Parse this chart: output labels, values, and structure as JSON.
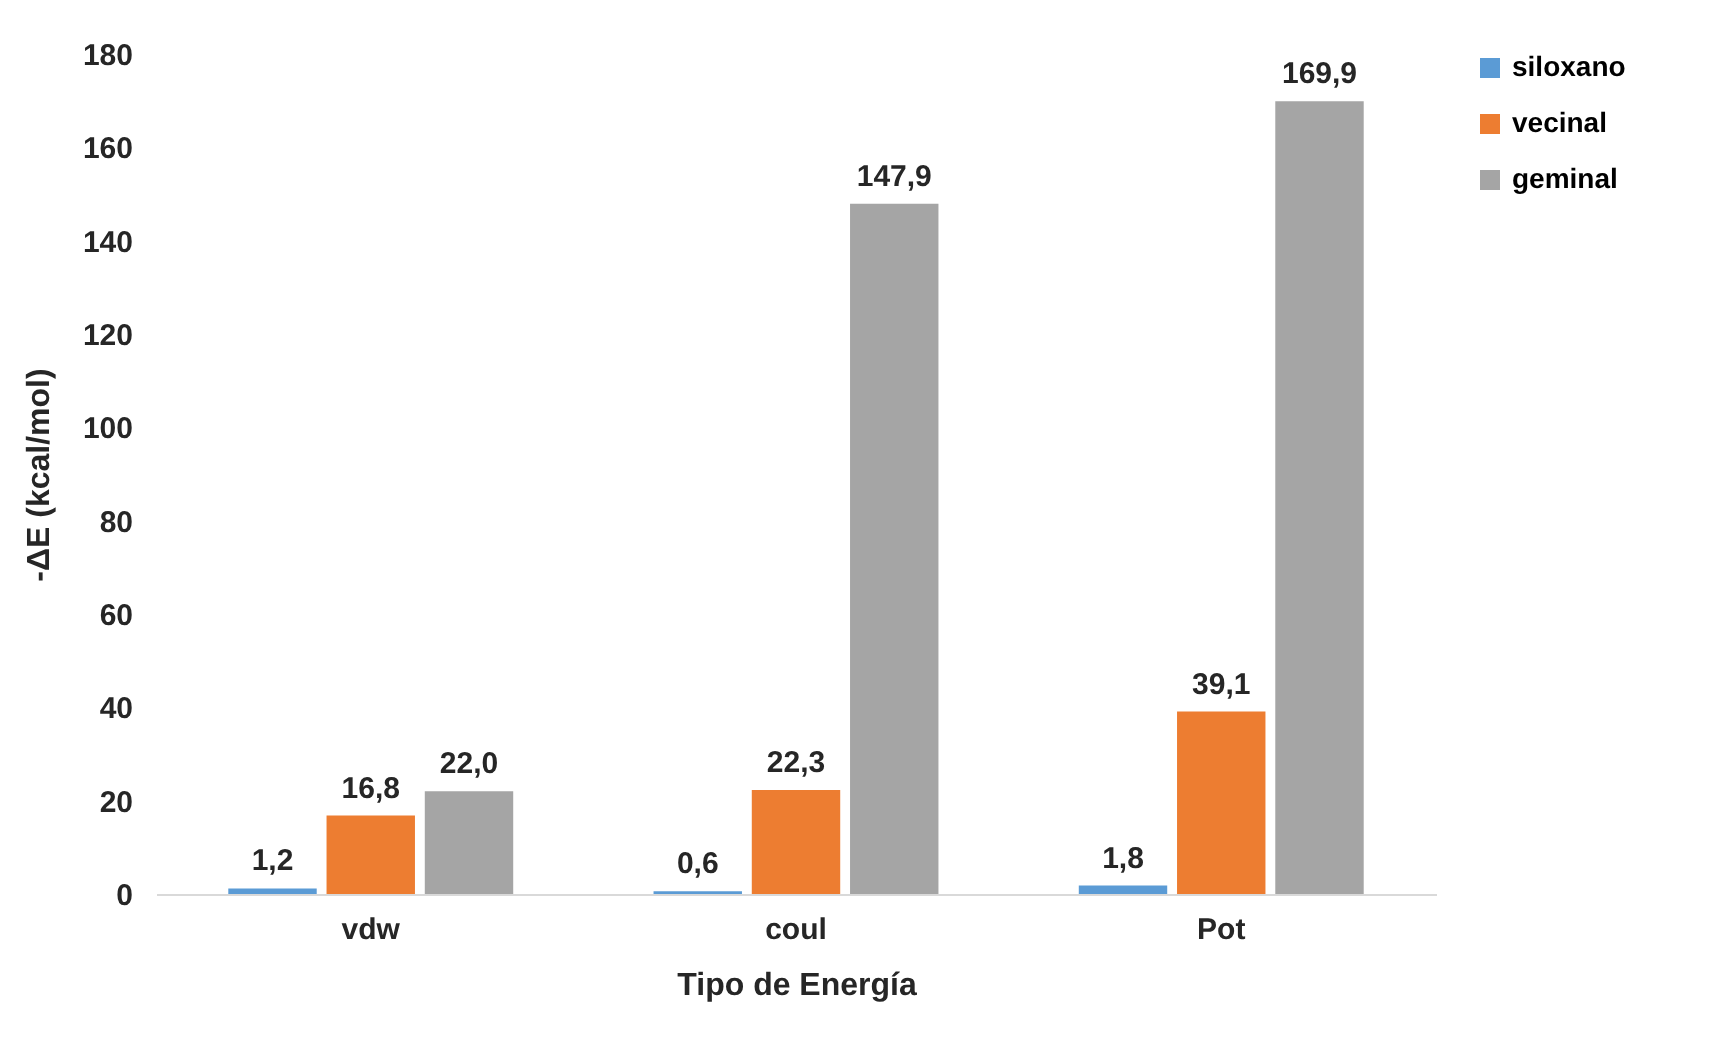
{
  "chart_data": {
    "type": "bar",
    "xlabel": "Tipo de Energía",
    "ylabel": "-ΔE (kcal/mol)",
    "categories": [
      "vdw",
      "coul",
      "Pot"
    ],
    "series": [
      {
        "name": "siloxano",
        "color": "#5b9bd5",
        "values": [
          1.2,
          0.6,
          1.8
        ],
        "value_labels": [
          "1,2",
          "0,6",
          "1,8"
        ]
      },
      {
        "name": "vecinal",
        "color": "#ed7d31",
        "values": [
          16.8,
          22.3,
          39.1
        ],
        "value_labels": [
          "16,8",
          "22,3",
          "39,1"
        ]
      },
      {
        "name": "geminal",
        "color": "#a5a5a5",
        "values": [
          22.0,
          147.9,
          169.9
        ],
        "value_labels": [
          "22,0",
          "147,9",
          "169,9"
        ]
      }
    ],
    "ylim": [
      0,
      180
    ],
    "yticks": [
      0,
      20,
      40,
      60,
      80,
      100,
      120,
      140,
      160,
      180
    ],
    "grid": false,
    "legend": "right"
  }
}
